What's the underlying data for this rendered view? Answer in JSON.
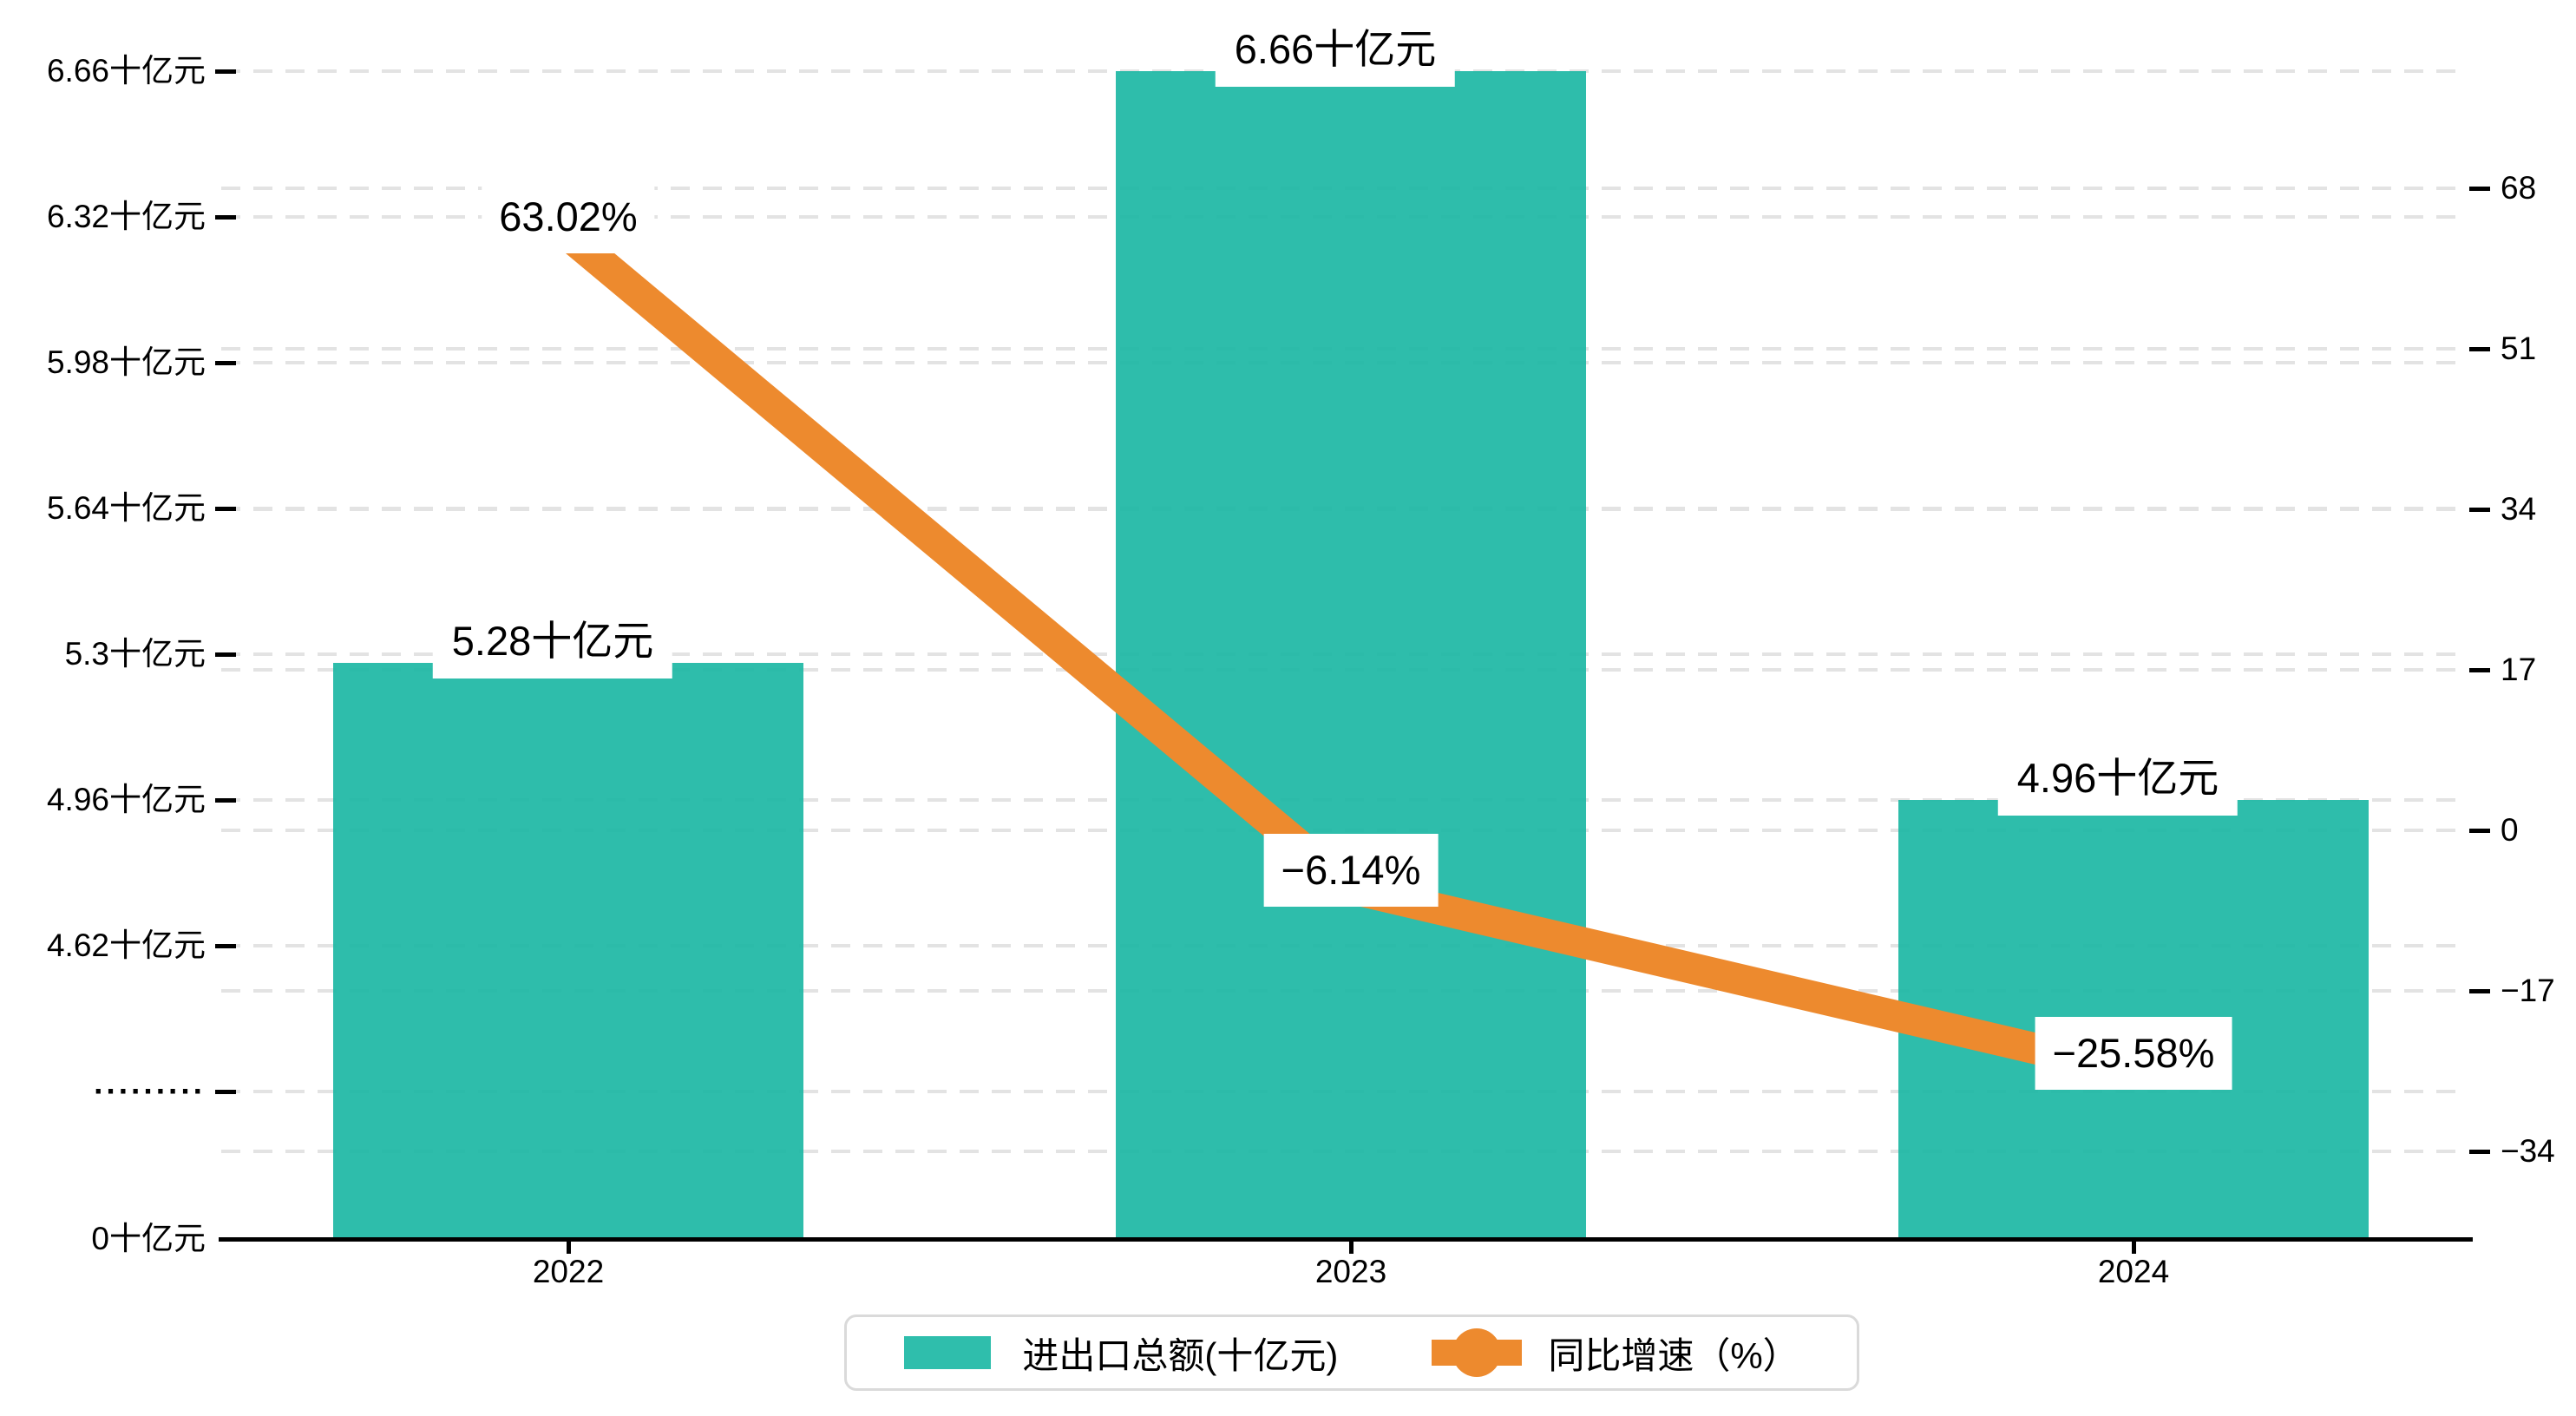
{
  "chart_data": {
    "type": "combo",
    "categories": [
      "2022",
      "2023",
      "2024"
    ],
    "series": [
      {
        "name": "进出口总额(十亿元)",
        "type": "bar",
        "values": [
          5.28,
          6.66,
          4.96
        ],
        "labels": [
          "5.28十亿元",
          "6.66十亿元",
          "4.96十亿元"
        ],
        "color": "#2fbeac"
      },
      {
        "name": "同比增速（%）",
        "type": "line",
        "values": [
          63.02,
          -6.14,
          -25.58
        ],
        "labels": [
          "63.02%",
          "−6.14%",
          "−25.58%"
        ],
        "color": "#ed8a2e"
      }
    ],
    "left_axis": {
      "unit": "十亿元",
      "broken_axis": true,
      "ticks": [
        {
          "label": "6.66十亿元",
          "value": 6.66
        },
        {
          "label": "6.32十亿元",
          "value": 6.32
        },
        {
          "label": "5.98十亿元",
          "value": 5.98
        },
        {
          "label": "5.64十亿元",
          "value": 5.64
        },
        {
          "label": "5.3十亿元",
          "value": 5.3
        },
        {
          "label": "4.96十亿元",
          "value": 4.96
        },
        {
          "label": "4.62十亿元",
          "value": 4.62
        },
        {
          "label": "·········",
          "value": null
        },
        {
          "label": "0十亿元",
          "value": 0
        }
      ]
    },
    "right_axis": {
      "unit": "%",
      "ticks": [
        {
          "label": "68",
          "value": 68
        },
        {
          "label": "51",
          "value": 51
        },
        {
          "label": "34",
          "value": 34
        },
        {
          "label": "17",
          "value": 17
        },
        {
          "label": "0",
          "value": 0
        },
        {
          "label": "−17",
          "value": -17
        },
        {
          "label": "−34",
          "value": -34
        }
      ]
    },
    "grid": "dashed-horizontal",
    "legend_position": "bottom-center",
    "colors": {
      "bar": "#2fbeac",
      "line": "#ed8a2e",
      "gridline": "#e3e3e3",
      "axis": "#000000",
      "legend_border": "#dadada",
      "label_background": "#ffffff"
    }
  }
}
